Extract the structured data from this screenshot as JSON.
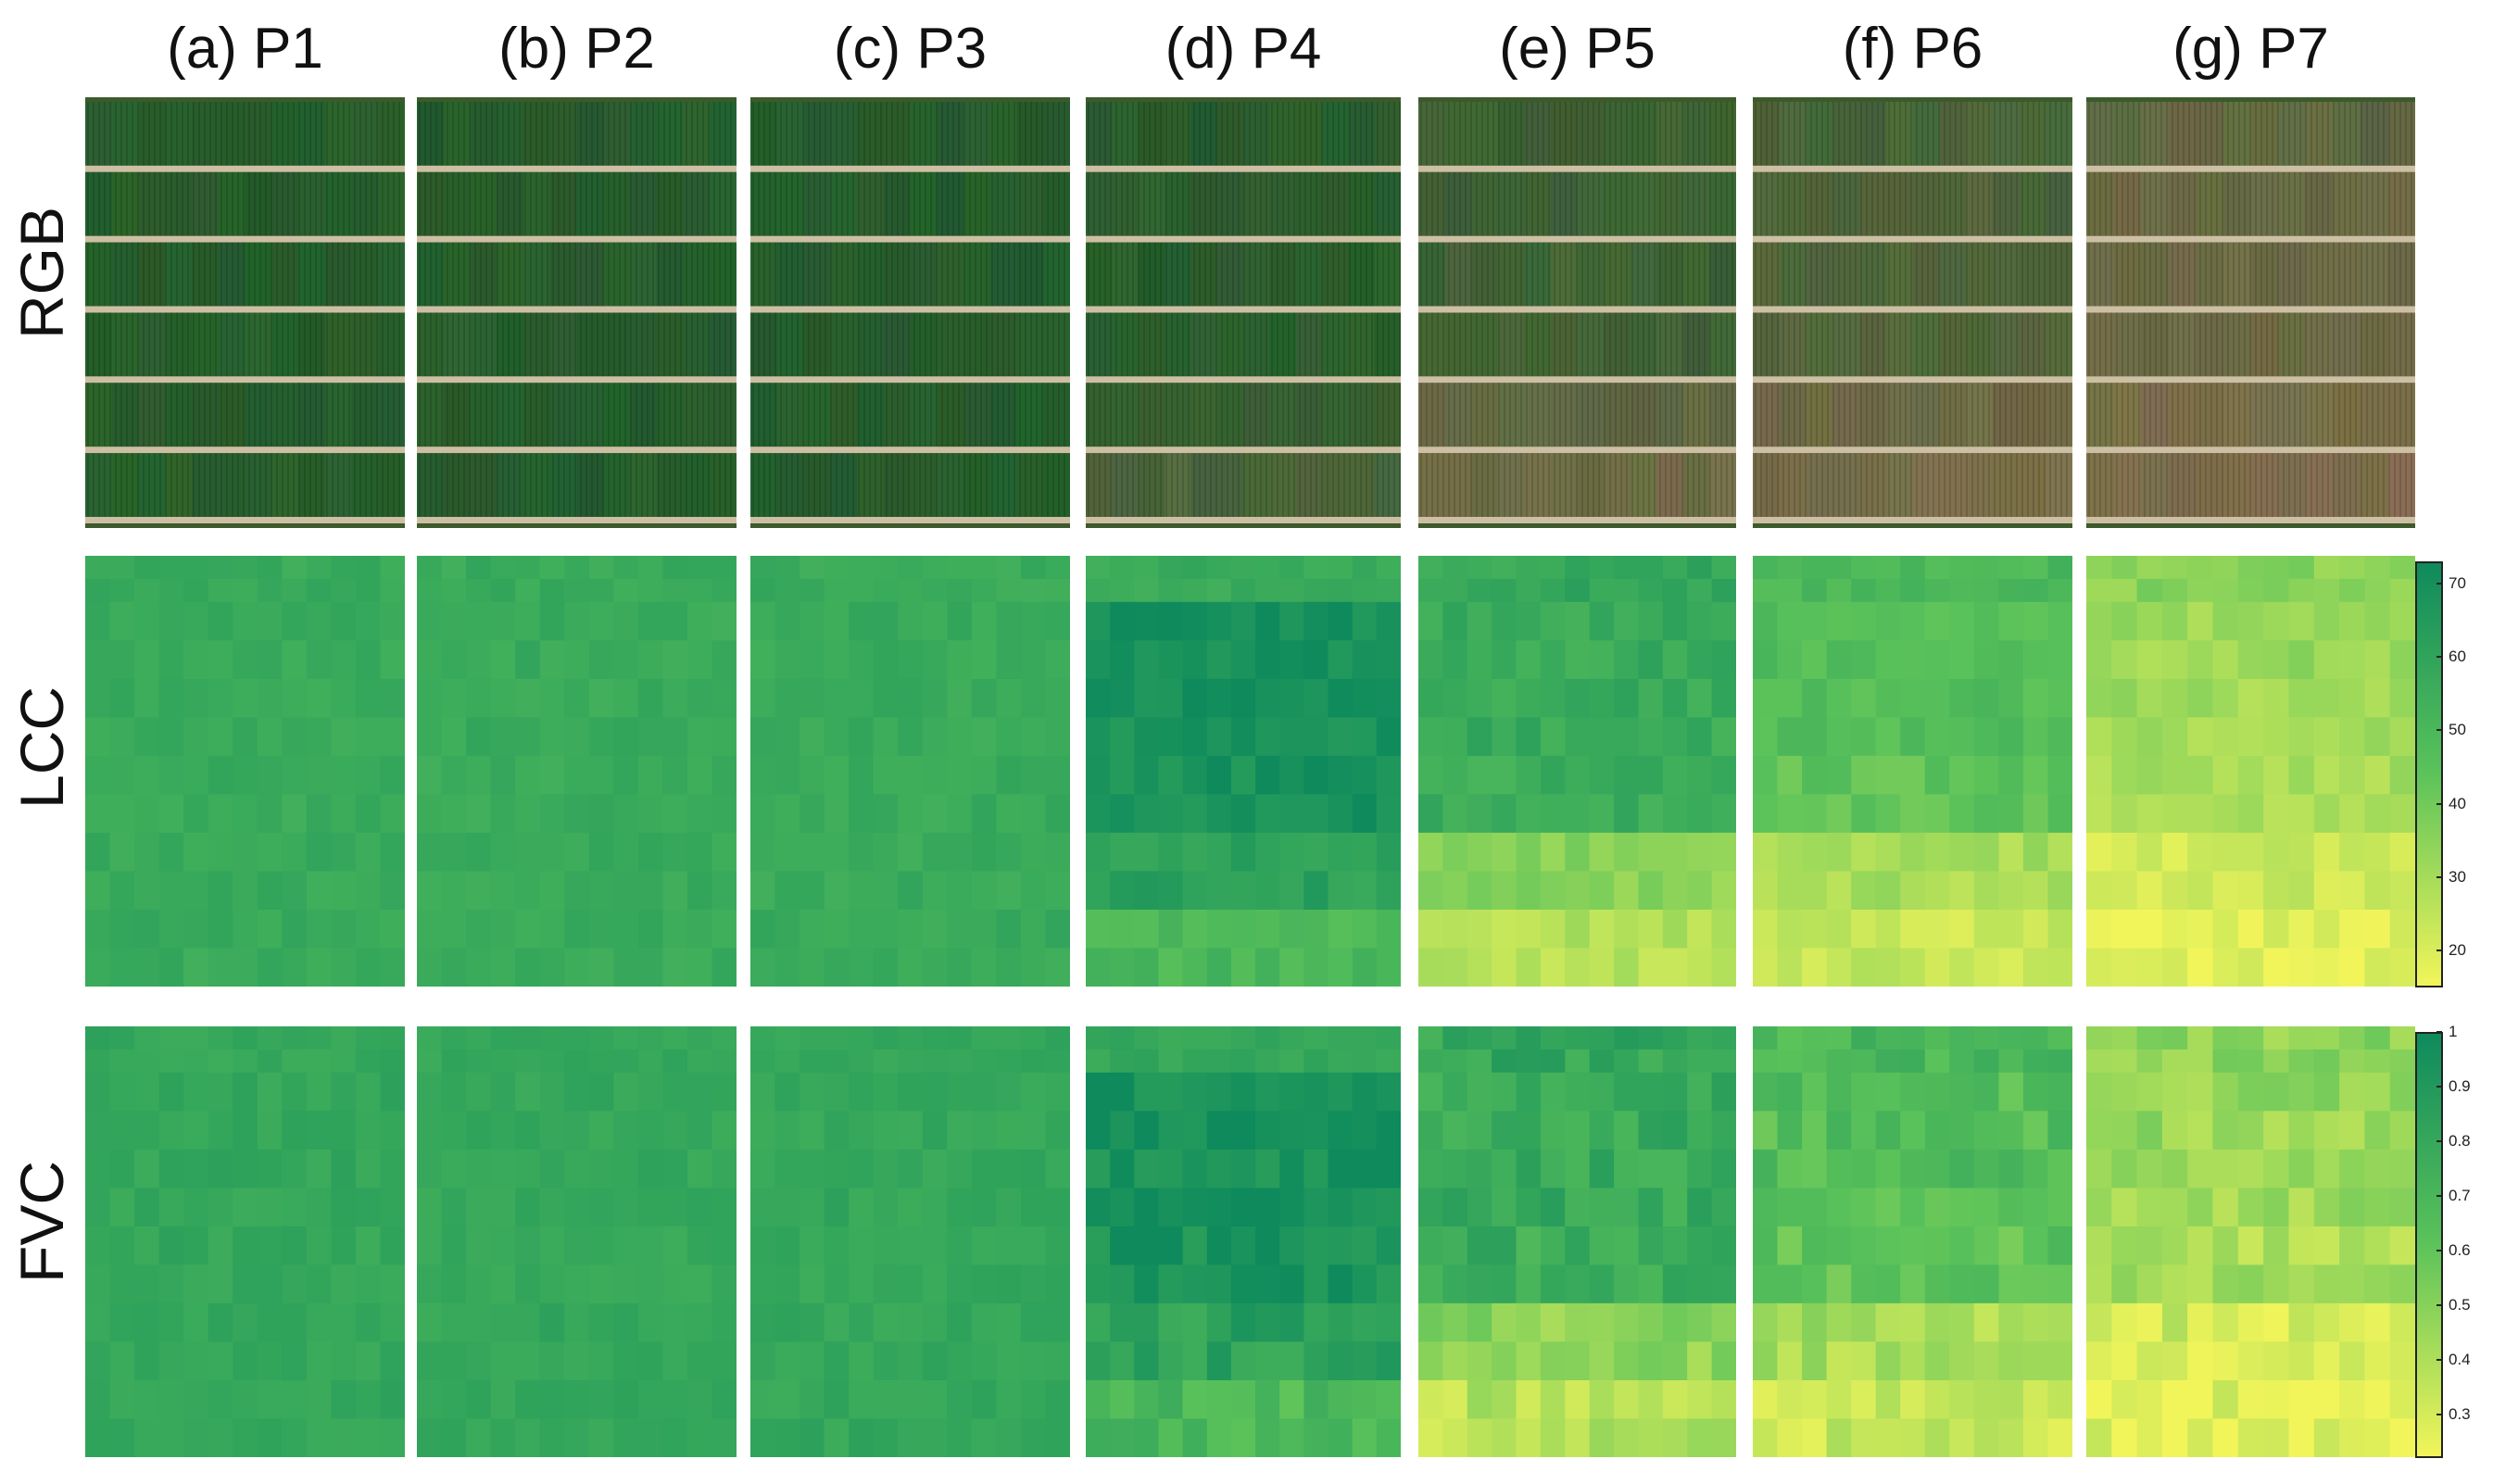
{
  "columns": [
    {
      "id": "p1",
      "label": "(a) P1"
    },
    {
      "id": "p2",
      "label": "(b) P2"
    },
    {
      "id": "p3",
      "label": "(c) P3"
    },
    {
      "id": "p4",
      "label": "(d) P4"
    },
    {
      "id": "p5",
      "label": "(e) P5"
    },
    {
      "id": "p6",
      "label": "(f) P6"
    },
    {
      "id": "p7",
      "label": "(g) P7"
    }
  ],
  "rows": [
    {
      "id": "rgb",
      "label": "RGB"
    },
    {
      "id": "lcc",
      "label": "LCC"
    },
    {
      "id": "fvc",
      "label": "FVC"
    }
  ],
  "colorbars": {
    "lcc": {
      "ticks": [
        "70",
        "60",
        "50",
        "40",
        "30",
        "20"
      ],
      "min": 15,
      "max": 73
    },
    "fvc": {
      "ticks": [
        "1",
        "0.9",
        "0.8",
        "0.7",
        "0.6",
        "0.5",
        "0.4",
        "0.3"
      ],
      "min": 0.22,
      "max": 1.0
    },
    "colors": {
      "low": "#f2f55a",
      "mid": "#5cc35a",
      "high": "#0e8a5c"
    }
  },
  "greenness": {
    "p1": [
      1.0,
      1.0,
      1.0,
      1.0,
      1.0,
      1.0
    ],
    "p2": [
      1.0,
      1.0,
      1.0,
      1.0,
      1.0,
      1.0
    ],
    "p3": [
      1.0,
      1.0,
      1.0,
      1.0,
      1.0,
      1.0
    ],
    "p4": [
      0.96,
      0.95,
      0.94,
      0.93,
      0.8,
      0.6
    ],
    "p5": [
      0.75,
      0.72,
      0.72,
      0.7,
      0.35,
      0.2
    ],
    "p6": [
      0.6,
      0.55,
      0.55,
      0.5,
      0.25,
      0.15
    ],
    "p7": [
      0.35,
      0.3,
      0.28,
      0.25,
      0.12,
      0.05
    ]
  }
}
